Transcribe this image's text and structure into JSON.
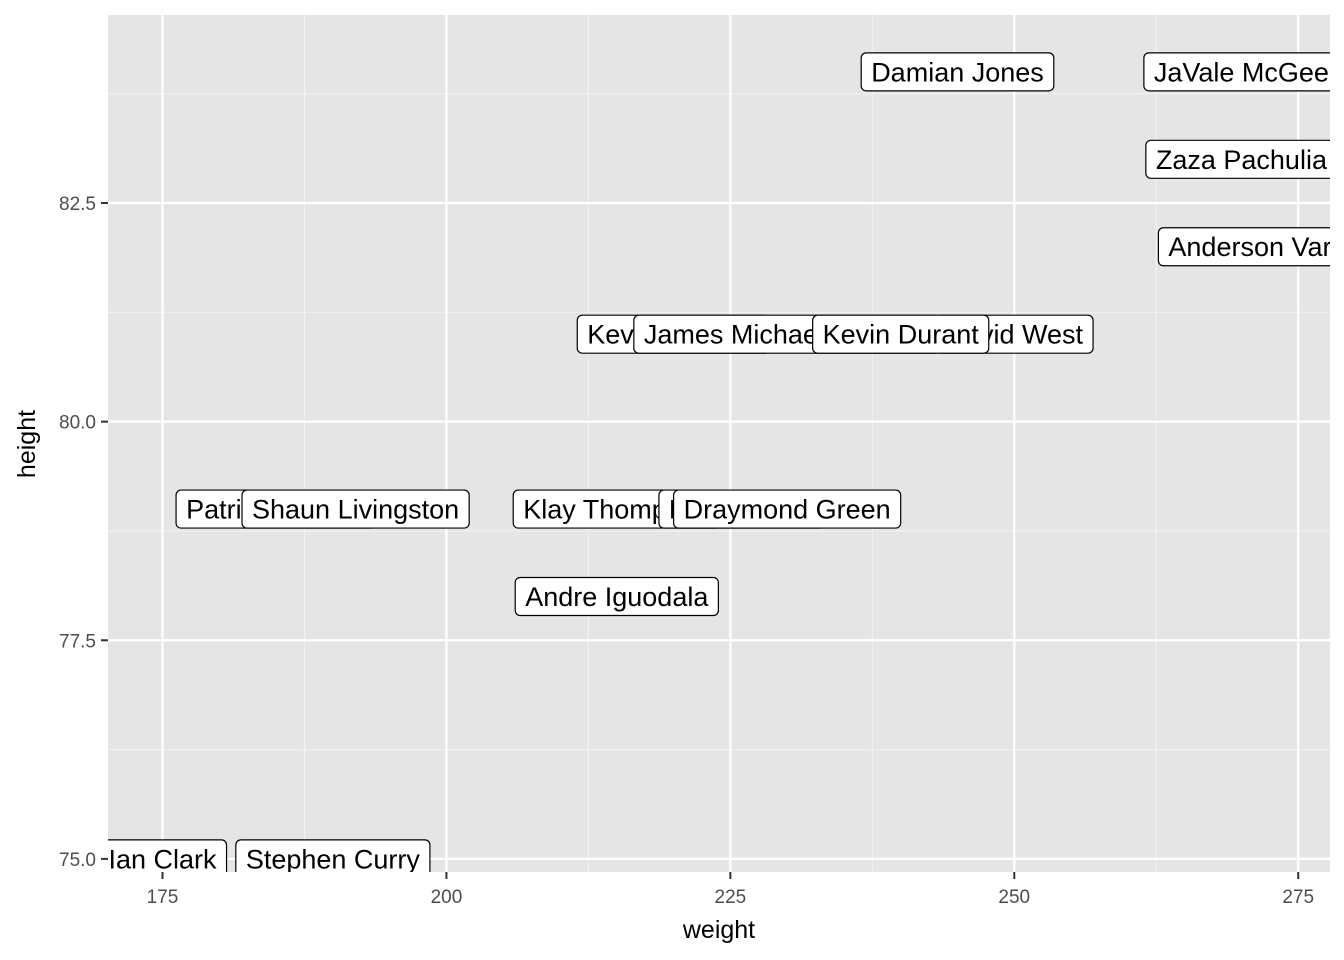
{
  "chart_data": {
    "type": "scatter",
    "title": "",
    "xlabel": "weight",
    "ylabel": "height",
    "xlim": [
      170.2,
      277.8
    ],
    "ylim": [
      74.85,
      84.65
    ],
    "x_ticks": [
      175,
      200,
      225,
      250,
      275
    ],
    "x_tick_labels": [
      "175",
      "200",
      "225",
      "250",
      "275"
    ],
    "y_ticks": [
      75.0,
      77.5,
      80.0,
      82.5
    ],
    "y_tick_labels": [
      "75.0",
      "77.5",
      "80.0",
      "82.5"
    ],
    "grid": true,
    "label_style": "boxed-text",
    "points": [
      {
        "label": "Ian Clark",
        "x": 175,
        "y": 75
      },
      {
        "label": "Stephen Curry",
        "x": 190,
        "y": 75
      },
      {
        "label": "Patrick McCaw",
        "x": 185,
        "y": 79
      },
      {
        "label": "Shaun Livingston",
        "x": 192,
        "y": 79
      },
      {
        "label": "Klay Thompson",
        "x": 215,
        "y": 79
      },
      {
        "label": "Matt Barnes",
        "x": 226,
        "y": 79
      },
      {
        "label": "Draymond Green",
        "x": 230,
        "y": 79
      },
      {
        "label": "Andre Iguodala",
        "x": 215,
        "y": 78
      },
      {
        "label": "Kevon Looney",
        "x": 220,
        "y": 81
      },
      {
        "label": "James Michael McAdoo",
        "x": 230,
        "y": 81
      },
      {
        "label": "David West",
        "x": 250,
        "y": 81
      },
      {
        "label": "Kevin Durant",
        "x": 240,
        "y": 81
      },
      {
        "label": "Damian Jones",
        "x": 245,
        "y": 84
      },
      {
        "label": "JaVale McGee",
        "x": 270,
        "y": 84
      },
      {
        "label": "Zaza Pachulia",
        "x": 270,
        "y": 83
      },
      {
        "label": "Anderson Varejao",
        "x": 273,
        "y": 82
      }
    ]
  },
  "colors": {
    "panel_background": "#e5e5e5",
    "grid_major": "#ffffff",
    "label_fill": "#ffffff",
    "label_border": "#000000"
  }
}
